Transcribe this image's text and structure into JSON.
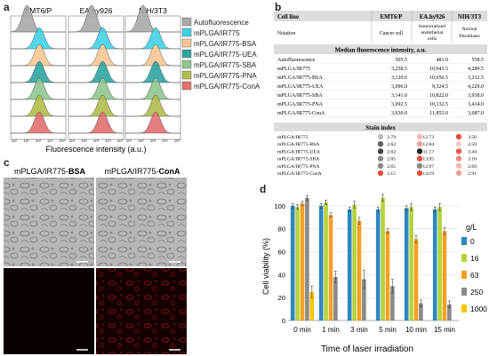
{
  "panels": {
    "a": "a",
    "b": "b",
    "c": "c",
    "d": "d"
  },
  "panel_a": {
    "cell_lines": [
      "EMT6/P",
      "EA.hy926",
      "NIH/3T3"
    ],
    "xlabel": "Fluorescence intensity (a.u.)",
    "tick_labels": [
      "10¹",
      "10²",
      "10³",
      "10⁴",
      "10⁵"
    ],
    "legend": [
      {
        "label": "Autofluorescence",
        "color": "#a9a9a9"
      },
      {
        "label": "mPLGA/IR775",
        "color": "#3fd2e6"
      },
      {
        "label": "mPLGA/IR775-BSA",
        "color": "#f7c693"
      },
      {
        "label": "mPLGA/IR775-UEA",
        "color": "#2ea5a2"
      },
      {
        "label": "mPLGA/IR775-SBA",
        "color": "#8fc58f"
      },
      {
        "label": "mPLGA/IR775-PNA",
        "color": "#b1bd4d"
      },
      {
        "label": "mPLGA/IR775-ConA",
        "color": "#e0706e"
      }
    ]
  },
  "panel_b": {
    "headers": [
      "Cell line",
      "EMT6/P",
      "EA.hy926",
      "NIH/3T3"
    ],
    "notation_row": {
      "label": "Notation",
      "c1": "Cancer cell",
      "c2a": "Immortalized",
      "c2b": "endothelial",
      "c2c": "cells",
      "c3a": "Normal",
      "c3b": "fibroblasts"
    },
    "mfi_header": "Median fluorescence intensity, a.u.",
    "mfi_rows": [
      {
        "name": "Autofluorescence",
        "v1": "505.5",
        "v2": "481.0",
        "v3": "558.5"
      },
      {
        "name": "mPLGA/IR775",
        "v1": "3,258.5",
        "v2": "10,643.5",
        "v3": "4,289.5"
      },
      {
        "name": "mPLGA/IR775-BSA",
        "v1": "3,120.0",
        "v2": "10,656.5",
        "v3": "3,212.5"
      },
      {
        "name": "mPLGA/IR775-UEA",
        "v1": "3,096.0",
        "v2": "9,324.5",
        "v3": "4,229.0"
      },
      {
        "name": "mPLGA/IR775-SBA",
        "v1": "3,141.0",
        "v2": "10,822.0",
        "v3": "3,938.0"
      },
      {
        "name": "mPLGA/IR775-PNA",
        "v1": "3,092.5",
        "v2": "10,132.5",
        "v3": "3,414.0"
      },
      {
        "name": "mPLGA/IR775-ConA",
        "v1": "3,630.0",
        "v2": "11,853.0",
        "v3": "3,687.0"
      }
    ],
    "stain_header": "Stain index",
    "stain_rows": [
      {
        "name": "mPLGA/IR775",
        "v1": "2.79",
        "c1": "#bdbdbd",
        "v2": "12.73",
        "c2": "#f5b8b8",
        "v3": "3.50",
        "c3": "#e2503e"
      },
      {
        "name": "mPLGA/IR775-BSA",
        "v1": "2.62",
        "c1": "#616161",
        "v2": "12.84",
        "c2": "#f0a0a0",
        "v3": "2.50",
        "c3": "#f0c8c8"
      },
      {
        "name": "mPLGA/IR775-UEA",
        "v1": "2.62",
        "c1": "#444444",
        "v2": "11.17",
        "c2": "#222222",
        "v3": "3.44",
        "c3": "#e15a4a"
      },
      {
        "name": "mPLGA/IR775-SBA",
        "v1": "2.65",
        "c1": "#8a8a8a",
        "v2": "13.05",
        "c2": "#e2503e",
        "v3": "3.16",
        "c3": "#ea8c80"
      },
      {
        "name": "mPLGA/IR775-PNA",
        "v1": "2.65",
        "c1": "#8a8a8a",
        "v2": "12.07",
        "c2": "#888888",
        "v3": "2.69",
        "c3": "#eeb8b0"
      },
      {
        "name": "mPLGA/IR775-ConA",
        "v1": "3.15",
        "c1": "#e2503e",
        "v2": "14.19",
        "c2": "#e2503e",
        "v3": "2.91",
        "c3": "#e9a298"
      }
    ]
  },
  "panel_c": {
    "label_left_prefix": "mPLGA/IR775-",
    "label_left_bold": "BSA",
    "label_right_prefix": "mPLGA/IR775-",
    "label_right_bold": "ConA"
  },
  "chart_data": {
    "type": "bar",
    "xlabel": "Time of laser irradiation",
    "ylabel": "Cell viability (%)",
    "ylim": [
      0,
      110
    ],
    "yticks": [
      0,
      20,
      40,
      60,
      80,
      100
    ],
    "categories": [
      "0 min",
      "1 min",
      "3 min",
      "5 min",
      "10 min",
      "15 min"
    ],
    "legend_title": "g/L",
    "series": [
      {
        "name": "0",
        "color": "#2e86c1",
        "values": [
          100,
          100,
          97,
          97,
          98,
          97
        ],
        "err": [
          2,
          2,
          2,
          2,
          2,
          2
        ]
      },
      {
        "name": "16",
        "color": "#b5d33d",
        "values": [
          99,
          103,
          101,
          107,
          99,
          99
        ],
        "err": [
          2,
          2,
          3,
          3,
          3,
          3
        ]
      },
      {
        "name": "63",
        "color": "#f5a020",
        "values": [
          102,
          92,
          87,
          78,
          71,
          78
        ],
        "err": [
          2,
          2,
          3,
          2,
          3,
          3
        ]
      },
      {
        "name": "250",
        "color": "#8a8a8a",
        "values": [
          107,
          38,
          36,
          30,
          15,
          14
        ],
        "err": [
          2,
          5,
          8,
          6,
          3,
          3
        ]
      },
      {
        "name": "1000",
        "color": "#f7c600",
        "values": [
          25,
          0,
          0,
          0,
          0,
          0
        ],
        "err": [
          5,
          0,
          0,
          0,
          0,
          0
        ]
      }
    ]
  }
}
